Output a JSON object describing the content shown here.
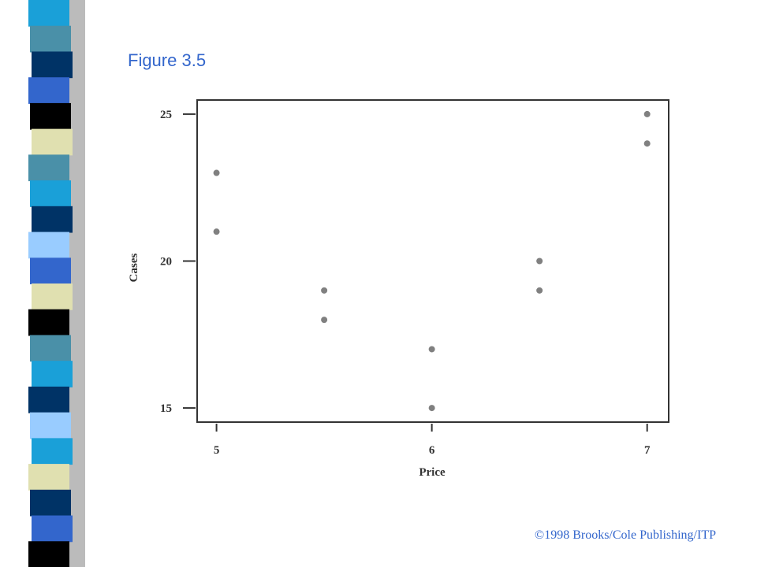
{
  "slide": {
    "title": "Figure 3.5",
    "footer": "©1998 Brooks/Cole Publishing/ITP"
  },
  "chart_data": {
    "type": "scatter",
    "x_label": "Price",
    "y_label": "Cases",
    "series": [
      {
        "name": "Cases",
        "color": "#808080",
        "x": [
          5,
          5,
          5.5,
          5.5,
          6,
          6,
          6.5,
          6.5,
          7,
          7
        ],
        "values": [
          23,
          21,
          19,
          18,
          17,
          15,
          20,
          19,
          25,
          24
        ]
      }
    ],
    "xlim": [
      4.91,
      7.1
    ],
    "ylim": [
      14.52,
      25.48
    ],
    "xticks": [
      5,
      6,
      7
    ],
    "yticks": [
      15,
      20,
      25
    ]
  }
}
